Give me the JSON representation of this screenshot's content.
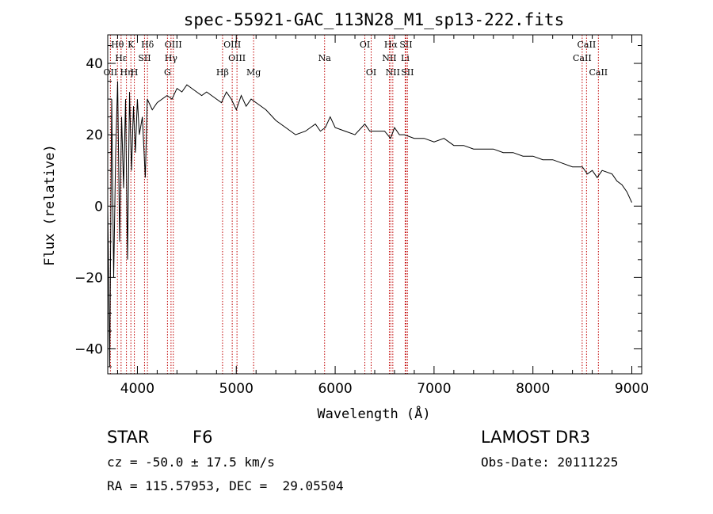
{
  "chart_data": {
    "type": "line",
    "title": "spec-55921-GAC_113N28_M1_sp13-222.fits",
    "xlabel": "Wavelength (Å)",
    "ylabel": "Flux (relative)",
    "xlim": [
      3700,
      9100
    ],
    "ylim": [
      -47,
      48
    ],
    "x_ticks": [
      4000,
      5000,
      6000,
      7000,
      8000,
      9000
    ],
    "y_ticks": [
      -40,
      -20,
      0,
      20,
      40
    ],
    "grid": false,
    "series": [
      {
        "name": "flux",
        "x": [
          3700,
          3720,
          3740,
          3760,
          3780,
          3800,
          3820,
          3840,
          3860,
          3880,
          3900,
          3920,
          3940,
          3960,
          3980,
          4000,
          4020,
          4050,
          4080,
          4100,
          4150,
          4200,
          4250,
          4300,
          4350,
          4400,
          4450,
          4500,
          4550,
          4600,
          4650,
          4700,
          4750,
          4800,
          4850,
          4900,
          4950,
          5000,
          5050,
          5100,
          5150,
          5200,
          5250,
          5300,
          5400,
          5500,
          5600,
          5700,
          5800,
          5850,
          5900,
          5950,
          6000,
          6100,
          6200,
          6300,
          6350,
          6400,
          6500,
          6560,
          6600,
          6650,
          6700,
          6800,
          6900,
          7000,
          7100,
          7200,
          7300,
          7400,
          7500,
          7600,
          7700,
          7800,
          7900,
          8000,
          8100,
          8200,
          8300,
          8400,
          8500,
          8550,
          8600,
          8650,
          8700,
          8800,
          8850,
          8900,
          8950,
          9000
        ],
        "values": [
          0,
          -45,
          30,
          -20,
          15,
          35,
          -10,
          25,
          5,
          30,
          -15,
          32,
          10,
          28,
          15,
          30,
          20,
          25,
          8,
          30,
          27,
          29,
          30,
          31,
          30,
          33,
          32,
          34,
          33,
          32,
          31,
          32,
          31,
          30,
          29,
          32,
          30,
          27,
          31,
          28,
          30,
          29,
          28,
          27,
          24,
          22,
          20,
          21,
          23,
          21,
          22,
          25,
          22,
          21,
          20,
          23,
          21,
          21,
          21,
          19,
          22,
          20,
          20,
          19,
          19,
          18,
          19,
          17,
          17,
          16,
          16,
          16,
          15,
          15,
          14,
          14,
          13,
          13,
          12,
          11,
          11,
          9,
          10,
          8,
          10,
          9,
          7,
          6,
          4,
          1
        ]
      }
    ],
    "lines": [
      {
        "label": "Hθ",
        "wave": 3798,
        "row": 0
      },
      {
        "label": "K",
        "wave": 3934,
        "row": 0
      },
      {
        "label": "Hδ",
        "wave": 4102,
        "row": 0
      },
      {
        "label": "OIII",
        "wave": 4363,
        "row": 0
      },
      {
        "label": "OIII",
        "wave": 4959,
        "row": 0
      },
      {
        "label": "OI",
        "wave": 6300,
        "row": 0
      },
      {
        "label": "Hα",
        "wave": 6563,
        "row": 0
      },
      {
        "label": "SII",
        "wave": 6716,
        "row": 0
      },
      {
        "label": "CaII",
        "wave": 8542,
        "row": 0
      },
      {
        "label": "Hε",
        "wave": 3835,
        "row": 1
      },
      {
        "label": "SII",
        "wave": 4072,
        "row": 1
      },
      {
        "label": "Hγ",
        "wave": 4340,
        "row": 1
      },
      {
        "label": "OIII",
        "wave": 5007,
        "row": 1
      },
      {
        "label": "Na",
        "wave": 5893,
        "row": 1
      },
      {
        "label": "NII",
        "wave": 6548,
        "row": 1
      },
      {
        "label": "Li",
        "wave": 6708,
        "row": 1
      },
      {
        "label": "CaII",
        "wave": 8498,
        "row": 1
      },
      {
        "label": "OII",
        "wave": 3727,
        "row": 2
      },
      {
        "label": "Hη",
        "wave": 3889,
        "row": 2
      },
      {
        "label": "H",
        "wave": 3969,
        "row": 2
      },
      {
        "label": "G",
        "wave": 4304,
        "row": 2
      },
      {
        "label": "Hβ",
        "wave": 4861,
        "row": 2
      },
      {
        "label": "Mg",
        "wave": 5175,
        "row": 2
      },
      {
        "label": "OI",
        "wave": 6364,
        "row": 2
      },
      {
        "label": "NII",
        "wave": 6583,
        "row": 2
      },
      {
        "label": "SII",
        "wave": 6731,
        "row": 2
      },
      {
        "label": "CaII",
        "wave": 8662,
        "row": 2
      }
    ]
  },
  "info": {
    "class": "STAR",
    "subclass": "F6",
    "survey": "LAMOST DR3",
    "cz": "cz = -50.0 ± 17.5 km/s",
    "obs_date": "Obs-Date: 20111225",
    "coords": "RA = 115.57953, DEC =  29.05504"
  },
  "colors": {
    "line": "#000000",
    "marker": "#c00000"
  }
}
